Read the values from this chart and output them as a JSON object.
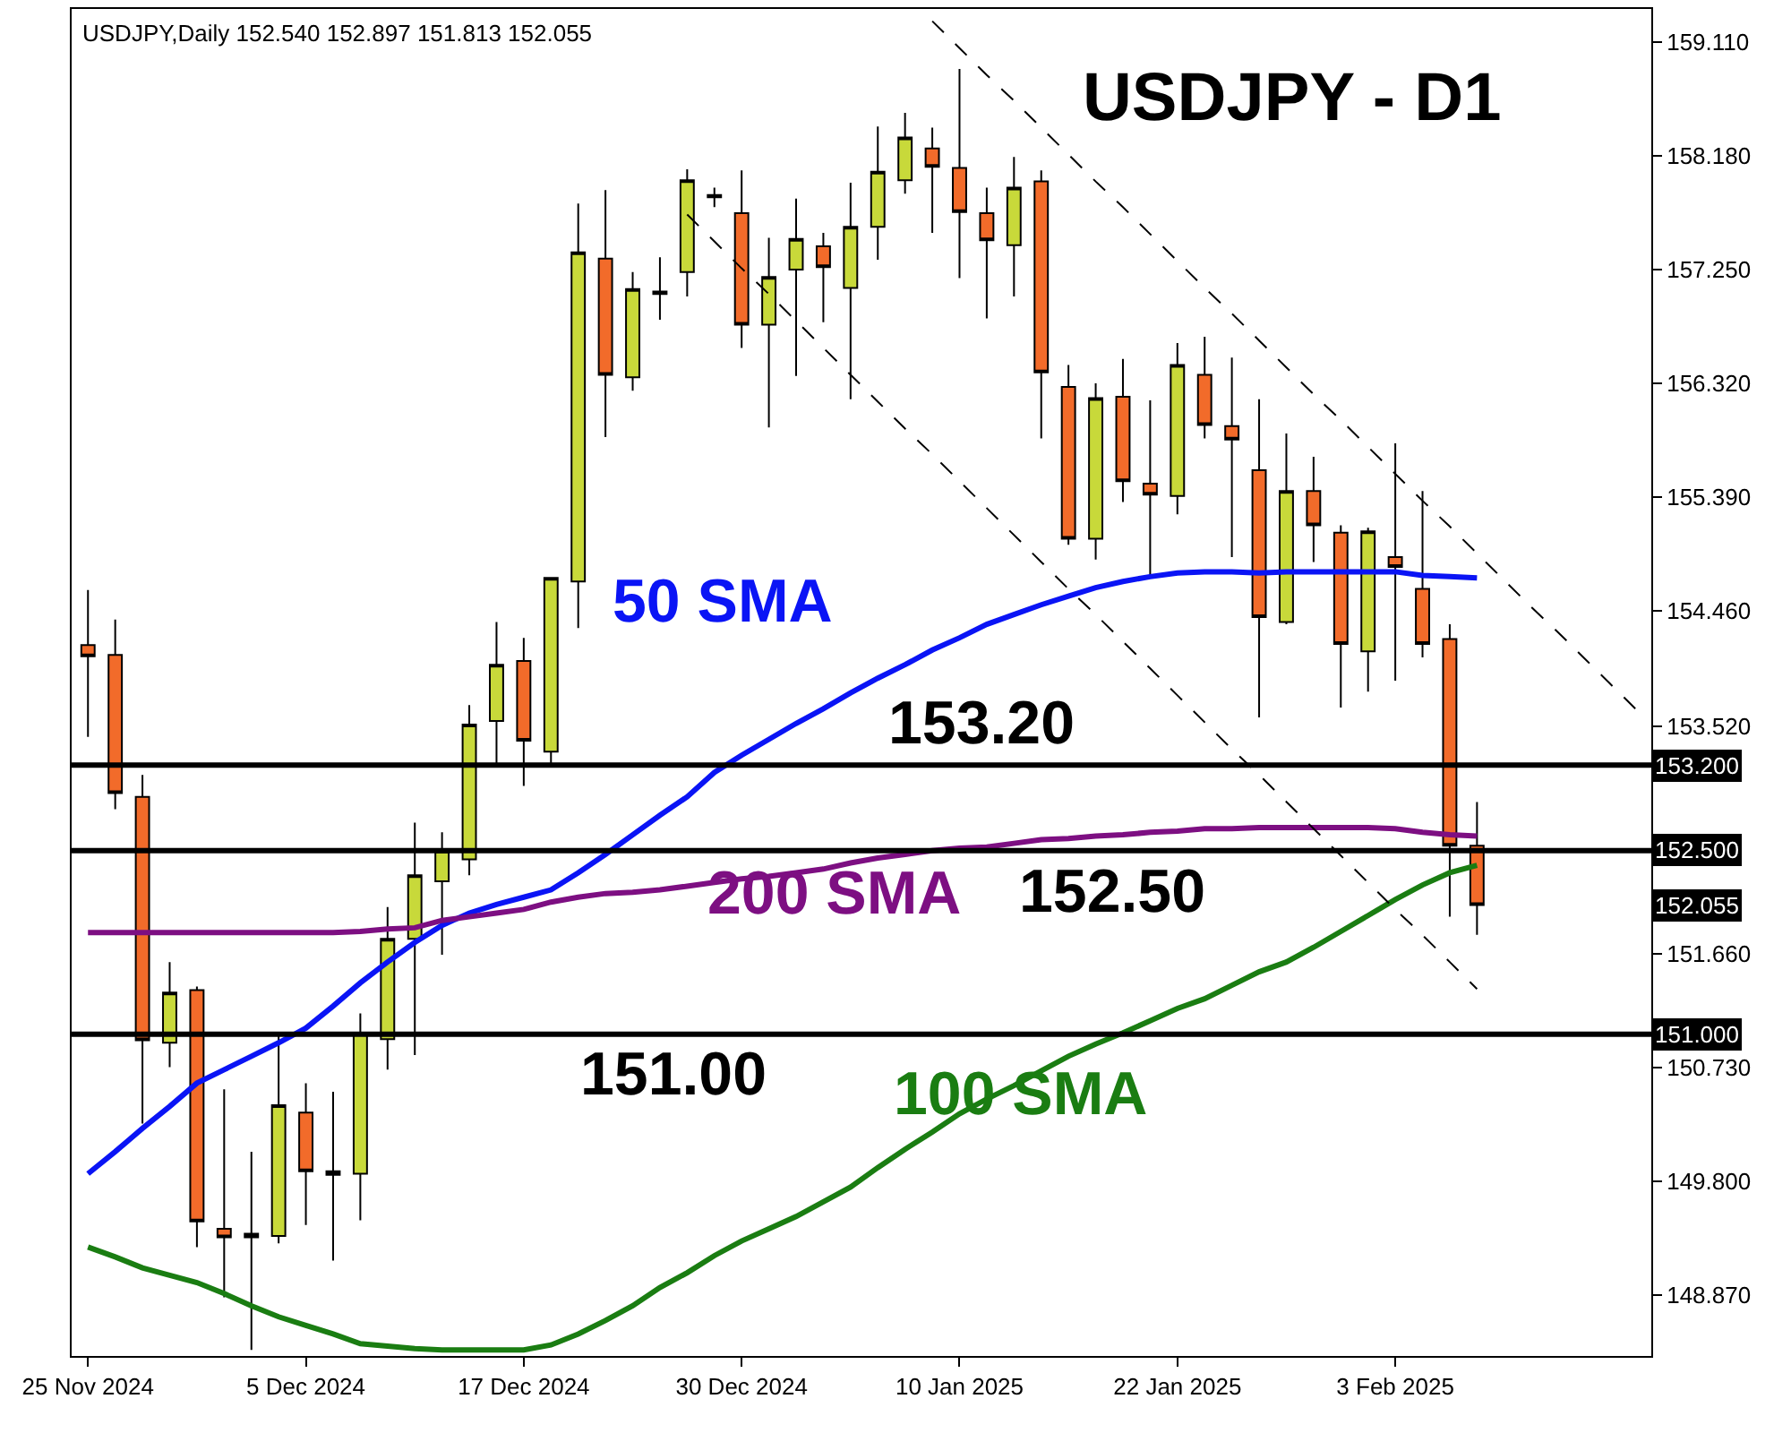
{
  "chart_data": {
    "type": "candlestick",
    "title": "USDJPY - D1",
    "subtitle": "USDJPY,Daily 152.540 152.897 151.813 152.055",
    "categories": [
      "25 Nov 2024",
      null,
      null,
      null,
      null,
      null,
      null,
      null,
      "5 Dec 2024",
      null,
      null,
      null,
      null,
      null,
      null,
      null,
      "17 Dec 2024",
      null,
      null,
      null,
      null,
      null,
      null,
      null,
      "30 Dec 2024",
      null,
      null,
      null,
      null,
      null,
      null,
      null,
      "10 Jan 2025",
      null,
      null,
      null,
      null,
      null,
      null,
      null,
      "22 Jan 2025",
      null,
      null,
      null,
      null,
      null,
      null,
      null,
      "3 Feb 2025",
      null,
      null,
      null,
      null,
      null,
      null,
      null,
      null,
      null
    ],
    "ohlc": [
      [
        154.18,
        154.63,
        153.43,
        154.09
      ],
      [
        154.1,
        154.39,
        152.84,
        152.97
      ],
      [
        152.94,
        153.12,
        150.27,
        150.95
      ],
      [
        150.93,
        151.59,
        150.73,
        151.34
      ],
      [
        151.36,
        151.39,
        149.26,
        149.47
      ],
      [
        149.41,
        150.55,
        148.85,
        149.34
      ],
      [
        149.37,
        150.04,
        148.42,
        149.34
      ],
      [
        149.35,
        151.01,
        149.29,
        150.42
      ],
      [
        150.36,
        150.6,
        149.44,
        149.88
      ],
      [
        149.88,
        150.53,
        149.15,
        149.85
      ],
      [
        149.86,
        151.17,
        149.48,
        151.01
      ],
      [
        150.96,
        152.04,
        150.71,
        151.78
      ],
      [
        151.78,
        152.73,
        150.83,
        152.3
      ],
      [
        152.25,
        152.65,
        151.65,
        152.5
      ],
      [
        152.43,
        153.69,
        152.3,
        153.53
      ],
      [
        153.56,
        154.37,
        153.19,
        154.02
      ],
      [
        154.05,
        154.24,
        153.03,
        153.4
      ],
      [
        153.31,
        154.73,
        153.21,
        154.73
      ],
      [
        154.7,
        157.79,
        154.32,
        157.39
      ],
      [
        157.34,
        157.9,
        155.88,
        156.39
      ],
      [
        156.37,
        157.23,
        156.26,
        157.09
      ],
      [
        157.05,
        157.35,
        156.84,
        157.07
      ],
      [
        157.23,
        158.07,
        157.03,
        157.98
      ],
      [
        157.84,
        157.92,
        157.76,
        157.86
      ],
      [
        157.71,
        158.06,
        156.61,
        156.8
      ],
      [
        156.8,
        157.51,
        155.96,
        157.19
      ],
      [
        157.25,
        157.83,
        156.38,
        157.5
      ],
      [
        157.44,
        157.55,
        156.82,
        157.27
      ],
      [
        157.1,
        157.96,
        156.19,
        157.6
      ],
      [
        157.6,
        158.42,
        157.33,
        158.05
      ],
      [
        157.98,
        158.53,
        157.87,
        158.33
      ],
      [
        158.24,
        158.41,
        157.55,
        158.09
      ],
      [
        158.08,
        158.89,
        157.18,
        157.72
      ],
      [
        157.71,
        157.92,
        156.85,
        157.49
      ],
      [
        157.45,
        158.17,
        157.03,
        157.92
      ],
      [
        157.97,
        158.06,
        155.87,
        156.41
      ],
      [
        156.29,
        156.47,
        155.0,
        155.05
      ],
      [
        155.05,
        156.32,
        154.88,
        156.2
      ],
      [
        156.21,
        156.52,
        155.35,
        155.52
      ],
      [
        155.5,
        156.18,
        154.75,
        155.41
      ],
      [
        155.4,
        156.65,
        155.25,
        156.47
      ],
      [
        156.39,
        156.7,
        155.87,
        155.98
      ],
      [
        155.97,
        156.53,
        154.9,
        155.86
      ],
      [
        155.61,
        156.19,
        153.59,
        154.41
      ],
      [
        154.37,
        155.91,
        154.35,
        155.44
      ],
      [
        155.44,
        155.72,
        154.86,
        155.16
      ],
      [
        155.1,
        155.16,
        153.67,
        154.19
      ],
      [
        154.13,
        155.14,
        153.8,
        155.11
      ],
      [
        154.9,
        155.83,
        153.89,
        154.82
      ],
      [
        154.64,
        155.44,
        154.08,
        154.19
      ],
      [
        154.23,
        154.35,
        151.96,
        152.54
      ],
      [
        152.54,
        152.897,
        151.813,
        152.055
      ],
      null,
      null,
      null,
      null,
      null,
      null
    ],
    "colors": [
      "#f26b2a",
      "#f26b2a",
      "#f26b2a",
      "#c8d93a",
      "#f26b2a",
      "#f26b2a",
      "#000000",
      "#c8d93a",
      "#f26b2a",
      "#000000",
      "#c8d93a",
      "#c8d93a",
      "#c8d93a",
      "#c8d93a",
      "#c8d93a",
      "#c8d93a",
      "#f26b2a",
      "#c8d93a",
      "#c8d93a",
      "#f26b2a",
      "#c8d93a",
      "#000000",
      "#c8d93a",
      "#000000",
      "#f26b2a",
      "#c8d93a",
      "#c8d93a",
      "#f26b2a",
      "#c8d93a",
      "#c8d93a",
      "#c8d93a",
      "#f26b2a",
      "#f26b2a",
      "#f26b2a",
      "#c8d93a",
      "#f26b2a",
      "#f26b2a",
      "#c8d93a",
      "#f26b2a",
      "#f26b2a",
      "#c8d93a",
      "#f26b2a",
      "#f26b2a",
      "#f26b2a",
      "#c8d93a",
      "#f26b2a",
      "#f26b2a",
      "#c8d93a",
      "#f26b2a",
      "#f26b2a",
      "#f26b2a",
      "#f26b2a",
      null,
      null,
      null,
      null,
      null,
      null
    ],
    "series": [
      {
        "name": "50 SMA",
        "type": "line",
        "color": "#0a14f5",
        "values": [
          149.86,
          150.04,
          150.23,
          150.41,
          150.6,
          150.71,
          150.82,
          150.93,
          151.05,
          151.23,
          151.42,
          151.59,
          151.75,
          151.89,
          151.99,
          152.06,
          152.12,
          152.18,
          152.32,
          152.47,
          152.63,
          152.79,
          152.94,
          153.14,
          153.28,
          153.41,
          153.54,
          153.66,
          153.79,
          153.91,
          154.02,
          154.14,
          154.24,
          154.35,
          154.43,
          154.51,
          154.58,
          154.65,
          154.7,
          154.74,
          154.77,
          154.78,
          154.78,
          154.77,
          154.78,
          154.78,
          154.78,
          154.78,
          154.78,
          154.75,
          154.74,
          154.73,
          null,
          null,
          null,
          null,
          null,
          null
        ]
      },
      {
        "name": "100 SMA",
        "type": "line",
        "color": "#1a7d12",
        "values": [
          149.26,
          149.18,
          149.09,
          149.03,
          148.97,
          148.88,
          148.78,
          148.69,
          148.62,
          148.55,
          148.47,
          148.45,
          148.43,
          148.42,
          148.42,
          148.42,
          148.42,
          148.46,
          148.55,
          148.66,
          148.78,
          148.93,
          149.05,
          149.19,
          149.31,
          149.41,
          149.51,
          149.63,
          149.75,
          149.91,
          150.06,
          150.2,
          150.35,
          150.47,
          150.58,
          150.7,
          150.82,
          150.92,
          151.01,
          151.11,
          151.21,
          151.29,
          151.4,
          151.51,
          151.59,
          151.71,
          151.84,
          151.97,
          152.1,
          152.22,
          152.32,
          152.38,
          null,
          null,
          null,
          null,
          null,
          null
        ]
      },
      {
        "name": "200 SMA",
        "type": "line",
        "color": "#7d0f82",
        "values": [
          151.83,
          151.83,
          151.83,
          151.83,
          151.83,
          151.83,
          151.83,
          151.83,
          151.83,
          151.83,
          151.84,
          151.86,
          151.87,
          151.93,
          151.96,
          151.99,
          152.02,
          152.08,
          152.12,
          152.15,
          152.16,
          152.18,
          152.21,
          152.24,
          152.27,
          152.29,
          152.32,
          152.35,
          152.4,
          152.44,
          152.47,
          152.5,
          152.52,
          152.53,
          152.56,
          152.59,
          152.6,
          152.62,
          152.63,
          152.65,
          152.66,
          152.68,
          152.68,
          152.69,
          152.69,
          152.69,
          152.69,
          152.69,
          152.68,
          152.65,
          152.63,
          152.62,
          null,
          null,
          null,
          null,
          null,
          null
        ]
      },
      {
        "type": "line",
        "color": "#000000",
        "line_style": "dashed",
        "values": [
          null,
          null,
          null,
          null,
          null,
          null,
          null,
          null,
          null,
          null,
          null,
          null,
          null,
          null,
          null,
          null,
          null,
          null,
          null,
          null,
          null,
          null,
          null,
          null,
          null,
          null,
          null,
          null,
          null,
          null,
          null,
          159.28,
          159.06,
          158.84,
          158.63,
          158.41,
          158.19,
          157.97,
          157.76,
          157.54,
          157.32,
          157.1,
          156.89,
          156.67,
          156.45,
          156.23,
          156.02,
          155.8,
          155.58,
          155.36,
          155.15,
          154.93,
          154.71,
          154.49,
          154.28,
          154.06,
          153.84,
          153.62
        ]
      },
      {
        "type": "line",
        "color": "#000000",
        "line_style": "dashed",
        "values": [
          null,
          null,
          null,
          null,
          null,
          null,
          null,
          null,
          null,
          null,
          null,
          null,
          null,
          null,
          null,
          null,
          null,
          null,
          null,
          null,
          null,
          null,
          157.7,
          157.48,
          157.26,
          157.05,
          156.83,
          156.61,
          156.39,
          156.17,
          155.95,
          155.74,
          155.52,
          155.3,
          155.08,
          154.86,
          154.64,
          154.43,
          154.21,
          153.99,
          153.77,
          153.55,
          153.33,
          153.12,
          152.9,
          152.68,
          152.46,
          152.24,
          152.02,
          151.81,
          151.59,
          151.37,
          null,
          null,
          null,
          null,
          null,
          null
        ]
      }
    ],
    "ylim": [
      148.37,
      159.38
    ],
    "yticks": [
      {
        "value": 159.11,
        "label": "159.110"
      },
      {
        "value": 158.18,
        "label": "158.180"
      },
      {
        "value": 157.25,
        "label": "157.250"
      },
      {
        "value": 156.32,
        "label": "156.320"
      },
      {
        "value": 155.39,
        "label": "155.390"
      },
      {
        "value": 154.46,
        "label": "154.460"
      },
      {
        "value": 153.52,
        "label": "153.520"
      },
      {
        "value": 152.59,
        "label": null
      },
      {
        "value": 151.66,
        "label": "151.660"
      },
      {
        "value": 150.73,
        "label": "150.730"
      },
      {
        "value": 149.8,
        "label": "149.800"
      },
      {
        "value": 148.87,
        "label": "148.870"
      }
    ],
    "ref_lines": [
      {
        "axis": "y",
        "value": 153.2,
        "label": "153.20",
        "color": "#000000"
      },
      {
        "axis": "y",
        "value": 152.5,
        "label": "152.50",
        "color": "#000000"
      },
      {
        "axis": "y",
        "value": 151.0,
        "label": "151.00",
        "color": "#000000"
      }
    ],
    "annotations": [
      "153.200",
      "152.500",
      "152.055",
      "151.000"
    ],
    "legend": false
  }
}
